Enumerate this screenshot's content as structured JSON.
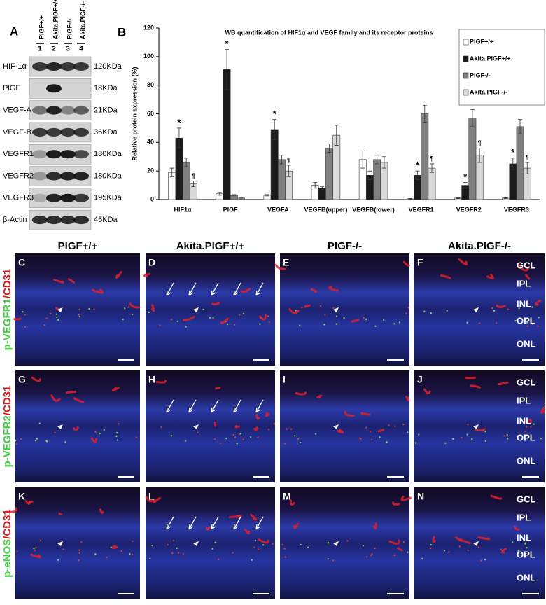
{
  "panel_a": {
    "letter": "A",
    "lanes": [
      {
        "number": "1",
        "label": "PlGF+/+"
      },
      {
        "number": "2",
        "label": "Akita.PlGF+/+"
      },
      {
        "number": "3",
        "label": "PlGF-/-"
      },
      {
        "number": "4",
        "label": "Akita.PlGF-/-"
      }
    ],
    "rows": [
      {
        "protein": "HIF-1α",
        "size": "120KDa"
      },
      {
        "protein": "PlGF",
        "size": "18KDa"
      },
      {
        "protein": "VEGF-A",
        "size": "21KDa"
      },
      {
        "protein": "VEGF-B",
        "size": "36KDa"
      },
      {
        "protein": "VEGFR1",
        "size": "180KDa"
      },
      {
        "protein": "VEGFR2",
        "size": "180KDa"
      },
      {
        "protein": "VEGFR3",
        "size": "195KDa"
      },
      {
        "protein": "β-Actin",
        "size": "45KDa"
      }
    ]
  },
  "chart_data": {
    "type": "bar",
    "letter": "B",
    "title": "WB quantification of HIF1α and VEGF family and its receptor proteins",
    "y_label": "Relative  protein expression (%)",
    "categories": [
      "HIF1α",
      "PlGF",
      "VEGFA",
      "VEGFB(upper)",
      "VEGFB(lower)",
      "VEGFR1",
      "VEGFR2",
      "VEGFR3"
    ],
    "series": [
      {
        "name": "PlGF+/+",
        "color": "#ffffff",
        "values": [
          19,
          4,
          3,
          10,
          28,
          0.5,
          1,
          1
        ],
        "errors": [
          3,
          1,
          0.5,
          2,
          6,
          0.3,
          0.3,
          0.3
        ],
        "marks": [
          null,
          null,
          null,
          null,
          null,
          null,
          null,
          null
        ]
      },
      {
        "name": "Akita.PlGF+/+",
        "color": "#1a1a1a",
        "values": [
          43,
          91,
          49,
          8,
          17,
          17,
          10,
          25
        ],
        "errors": [
          7,
          14,
          7,
          1,
          3,
          3,
          2,
          4
        ],
        "marks": [
          "*",
          "*",
          "*",
          null,
          null,
          "*",
          "*",
          "*"
        ]
      },
      {
        "name": "PlGF-/-",
        "color": "#808080",
        "values": [
          26,
          3,
          28,
          36,
          28,
          60,
          57,
          51
        ],
        "errors": [
          3,
          0.5,
          3,
          3,
          3,
          6,
          6,
          5
        ],
        "marks": [
          null,
          null,
          null,
          null,
          null,
          null,
          null,
          null
        ]
      },
      {
        "name": "Akita.PlGF-/-",
        "color": "#d9d9d9",
        "values": [
          11,
          1,
          20,
          45,
          26,
          22,
          31,
          22
        ],
        "errors": [
          2,
          0.5,
          4,
          7,
          4,
          3,
          5,
          4
        ],
        "marks": [
          "¶",
          null,
          "¶",
          null,
          null,
          "¶",
          "¶",
          "¶"
        ]
      }
    ],
    "ylim": [
      0,
      120
    ],
    "yticks": [
      0,
      20,
      40,
      60,
      80,
      100,
      120
    ],
    "legend": "top-right"
  },
  "micrographs": {
    "columns": [
      "PlGF+/+",
      "Akita.PlGF+/+",
      "PlGF-/-",
      "Akita.PlGF-/-"
    ],
    "rows": [
      {
        "stain": "p-VEGFR1",
        "counterstain": "/CD31",
        "panels": [
          "C",
          "D",
          "E",
          "F"
        ],
        "layers": [
          "GCL",
          "IPL",
          "INL",
          "OPL",
          "ONL"
        ]
      },
      {
        "stain": "p-VEGFR2",
        "counterstain": "/CD31",
        "panels": [
          "G",
          "H",
          "I",
          "J"
        ],
        "layers": [
          "GCL",
          "IPL",
          "INL",
          "OPL",
          "ONL"
        ]
      },
      {
        "stain": "p-eNOS",
        "counterstain": "/CD31",
        "panels": [
          "K",
          "L",
          "M",
          "N"
        ],
        "layers": [
          "GCL",
          "IPL",
          "INL",
          "OPL",
          "ONL"
        ]
      }
    ]
  }
}
